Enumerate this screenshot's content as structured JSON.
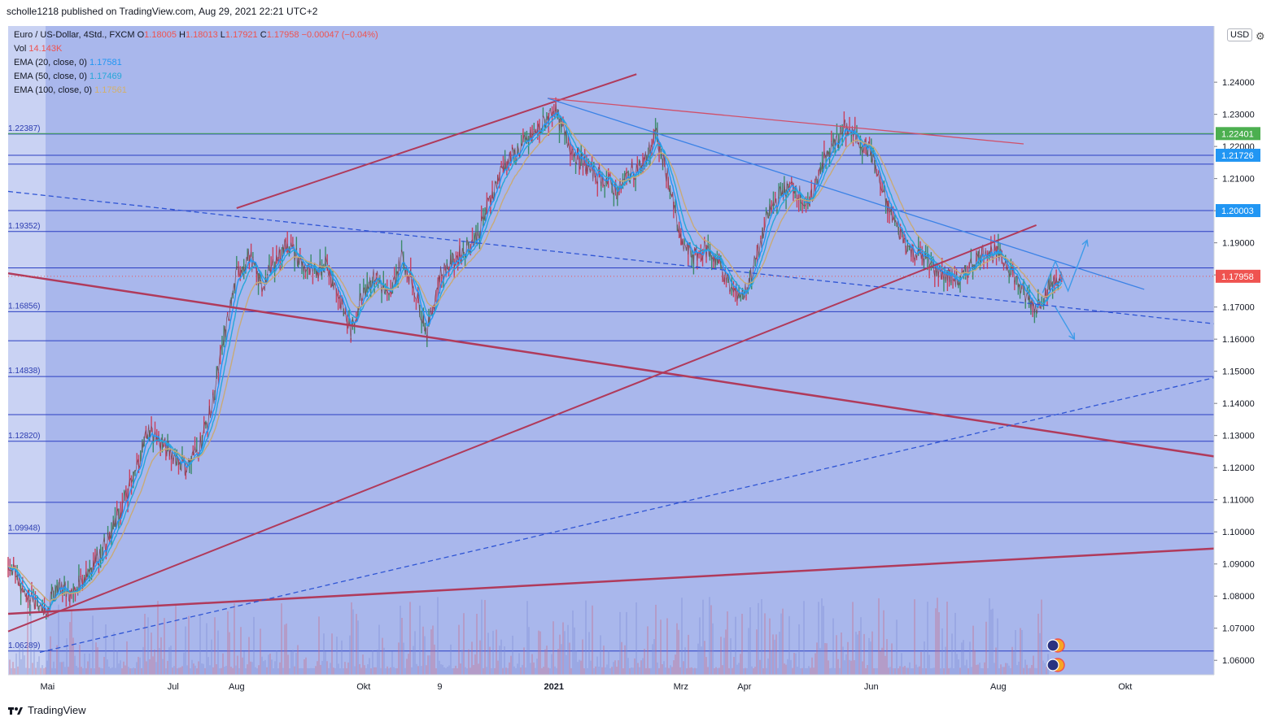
{
  "header": {
    "published": "scholle1218 published on TradingView.com, Aug 29, 2021 22:21 UTC+2"
  },
  "legend": {
    "symbol": "Euro / US-Dollar, 4Std., FXCM",
    "o_label": "O",
    "o_value": "1.18005",
    "h_label": "H",
    "h_value": "1.18013",
    "l_label": "L",
    "l_value": "1.17921",
    "c_label": "C",
    "c_value": "1.17958",
    "change": "−0.00047 (−0.04%)",
    "vol_label": "Vol",
    "vol_value": "14.143K",
    "ema20_label": "EMA (20, close, 0)",
    "ema20_value": "1.17581",
    "ema50_label": "EMA (50, close, 0)",
    "ema50_value": "1.17469",
    "ema100_label": "EMA (100, close, 0)",
    "ema100_value": "1.17561"
  },
  "currency": "USD",
  "footer": {
    "brand": "TradingView"
  },
  "chart_data": {
    "type": "line",
    "title": "Euro / US-Dollar, 4Std., FXCM",
    "x_tick_labels": [
      {
        "label": "Mai",
        "x": 0.02
      },
      {
        "label": "Jul",
        "x": 2.0
      },
      {
        "label": "Aug",
        "x": 3.0
      },
      {
        "label": "Okt",
        "x": 5.0
      },
      {
        "label": "9",
        "x": 6.2
      },
      {
        "label": "2021",
        "x": 8.0
      },
      {
        "label": "Mrz",
        "x": 10.0
      },
      {
        "label": "Apr",
        "x": 11.0
      },
      {
        "label": "Jun",
        "x": 13.0
      },
      {
        "label": "Aug",
        "x": 15.0
      },
      {
        "label": "Okt",
        "x": 17.0
      }
    ],
    "y_tick_labels": [
      "1.06000",
      "1.07000",
      "1.08000",
      "1.09000",
      "1.10000",
      "1.11000",
      "1.12000",
      "1.13000",
      "1.14000",
      "1.15000",
      "1.16000",
      "1.17000",
      "1.18000",
      "1.19000",
      "1.20000",
      "1.21000",
      "1.22000",
      "1.23000",
      "1.24000"
    ],
    "ylim": [
      1.0555,
      1.2575
    ],
    "xlim": [
      -0.6,
      18.4
    ],
    "price_series": {
      "name": "",
      "x": [
        -0.6,
        -0.4,
        -0.2,
        0,
        0.2,
        0.4,
        0.6,
        0.8,
        1.0,
        1.2,
        1.4,
        1.6,
        1.8,
        2.0,
        2.2,
        2.4,
        2.6,
        2.8,
        3.0,
        3.2,
        3.4,
        3.6,
        3.8,
        4.0,
        4.2,
        4.4,
        4.6,
        4.8,
        5.0,
        5.2,
        5.4,
        5.6,
        5.8,
        6.0,
        6.2,
        6.4,
        6.6,
        6.8,
        7.0,
        7.2,
        7.4,
        7.6,
        7.8,
        8.0,
        8.2,
        8.4,
        8.6,
        8.8,
        9.0,
        9.2,
        9.4,
        9.6,
        9.8,
        10.0,
        10.2,
        10.4,
        10.6,
        10.8,
        11.0,
        11.2,
        11.4,
        11.6,
        11.8,
        12.0,
        12.2,
        12.4,
        12.6,
        12.8,
        13.0,
        13.2,
        13.4,
        13.6,
        13.8,
        14.0,
        14.2,
        14.4,
        14.6,
        14.8,
        15.0,
        15.2,
        15.4,
        15.6,
        15.8,
        16.0
      ],
      "y": [
        1.09,
        1.083,
        1.078,
        1.076,
        1.084,
        1.08,
        1.086,
        1.092,
        1.098,
        1.108,
        1.118,
        1.132,
        1.128,
        1.124,
        1.12,
        1.126,
        1.138,
        1.16,
        1.18,
        1.186,
        1.176,
        1.184,
        1.19,
        1.184,
        1.18,
        1.184,
        1.174,
        1.162,
        1.176,
        1.18,
        1.172,
        1.186,
        1.176,
        1.162,
        1.18,
        1.184,
        1.188,
        1.192,
        1.204,
        1.214,
        1.218,
        1.222,
        1.226,
        1.232,
        1.222,
        1.216,
        1.212,
        1.21,
        1.206,
        1.212,
        1.214,
        1.224,
        1.21,
        1.19,
        1.186,
        1.188,
        1.184,
        1.175,
        1.174,
        1.186,
        1.2,
        1.206,
        1.208,
        1.2,
        1.214,
        1.22,
        1.226,
        1.222,
        1.218,
        1.204,
        1.195,
        1.188,
        1.186,
        1.182,
        1.18,
        1.178,
        1.184,
        1.188,
        1.186,
        1.182,
        1.174,
        1.17,
        1.176,
        1.18
      ]
    },
    "ema_series": [
      {
        "name": "EMA (20, close, 0)",
        "color": "#2196f3",
        "lag": 1,
        "value": 1.17581
      },
      {
        "name": "EMA (50, close, 0)",
        "color": "#26a7d9",
        "lag": 2,
        "value": 1.17469
      },
      {
        "name": "EMA (100, close, 0)",
        "color": "#c8aa78",
        "lag": 4,
        "value": 1.17561
      }
    ],
    "horizontal_levels": [
      {
        "y": 1.06289,
        "label": "1.06289)"
      },
      {
        "y": 1.09948,
        "label": "1.09948)"
      },
      {
        "y": 1.1092,
        "label": ""
      },
      {
        "y": 1.1282,
        "label": "1.12820)"
      },
      {
        "y": 1.1365,
        "label": ""
      },
      {
        "y": 1.14838,
        "label": "1.14838)"
      },
      {
        "y": 1.1595,
        "label": ""
      },
      {
        "y": 1.16856,
        "label": "1.16856)"
      },
      {
        "y": 1.1822,
        "label": ""
      },
      {
        "y": 1.19352,
        "label": "1.19352)"
      },
      {
        "y": 1.20003,
        "label": ""
      },
      {
        "y": 1.2145,
        "label": ""
      },
      {
        "y": 1.21726,
        "label": ""
      },
      {
        "y": 1.22387,
        "label": "1.22387)"
      }
    ],
    "green_level": {
      "y": 1.22401,
      "label": "1.22401"
    },
    "badges": [
      {
        "y": 1.22401,
        "label": "1.22401",
        "color": "#4caf50"
      },
      {
        "y": 1.21726,
        "label": "1.21726",
        "color": "#2196f3"
      },
      {
        "y": 1.20003,
        "label": "1.20003",
        "color": "#2196f3"
      },
      {
        "y": 1.17958,
        "label": "1.17958",
        "color": "#ef5350"
      }
    ],
    "trendlines": [
      {
        "x1": -0.6,
        "y1": 1.0745,
        "x2": 18.4,
        "y2": 1.0948,
        "color": "#b03a5b",
        "width": 2.5,
        "dash": false
      },
      {
        "x1": -0.6,
        "y1": 1.1805,
        "x2": 18.4,
        "y2": 1.1235,
        "color": "#b03a5b",
        "width": 2.5,
        "dash": false
      },
      {
        "x1": -0.6,
        "y1": 1.069,
        "x2": 15.6,
        "y2": 1.1955,
        "color": "#b03a5b",
        "width": 2.0,
        "dash": false
      },
      {
        "x1": 3.0,
        "y1": 1.2008,
        "x2": 9.3,
        "y2": 1.2425,
        "color": "#b03a5b",
        "width": 2.0,
        "dash": false
      },
      {
        "x1": 7.9,
        "y1": 1.235,
        "x2": 15.4,
        "y2": 1.2208,
        "color": "#d0506a",
        "width": 1.3,
        "dash": false
      },
      {
        "x1": 7.9,
        "y1": 1.235,
        "x2": 17.3,
        "y2": 1.1755,
        "color": "#3b82e6",
        "width": 1.3,
        "dash": false
      },
      {
        "x1": -0.6,
        "y1": 1.206,
        "x2": 18.4,
        "y2": 1.1648,
        "color": "#2f55d4",
        "width": 1.3,
        "dash": true
      },
      {
        "x1": -0.1,
        "y1": 1.0625,
        "x2": 18.4,
        "y2": 1.148,
        "color": "#2f55d4",
        "width": 1.3,
        "dash": true
      }
    ],
    "projections": [
      {
        "points": [
          [
            15.7,
            1.1744
          ],
          [
            15.9,
            1.1843
          ],
          [
            16.1,
            1.175
          ],
          [
            16.4,
            1.1908
          ]
        ],
        "color": "#3d9be9"
      },
      {
        "points": [
          [
            15.9,
            1.17
          ],
          [
            16.2,
            1.16
          ]
        ],
        "color": "#3d9be9"
      }
    ]
  }
}
